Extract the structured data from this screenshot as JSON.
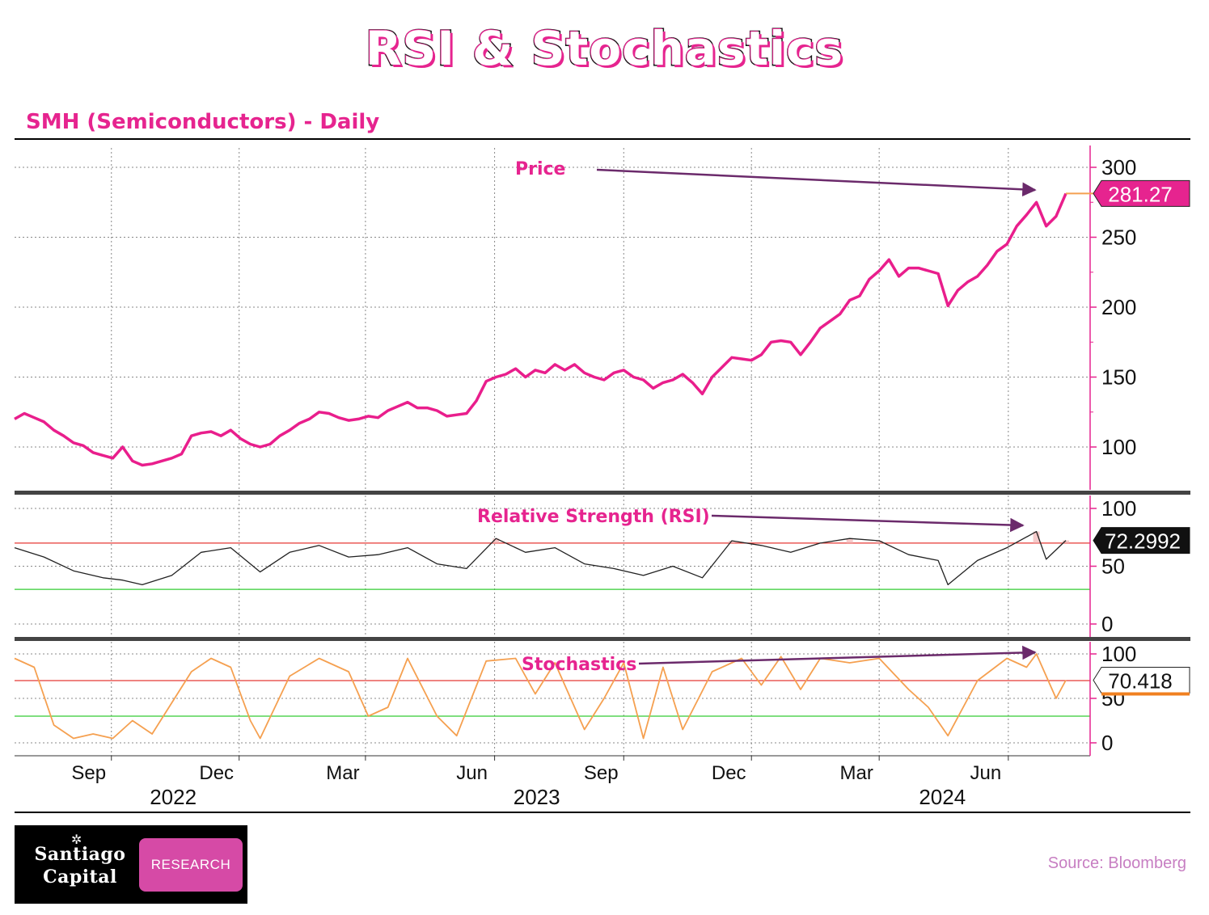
{
  "title": "RSI & Stochastics",
  "subtitle": "SMH (Semiconductors)  - Daily",
  "source": "Source: Bloomberg",
  "logo": {
    "name_line1": "Santiago",
    "name_line2": "Capital",
    "tag": "RESEARCH"
  },
  "colors": {
    "accent": "#e6248f",
    "price_line": "#e91e8c",
    "rsi_line": "#222222",
    "stoch_line": "#f5a050",
    "overbought_line": "#e53935",
    "oversold_line": "#33cc33",
    "annotation_arrow": "#6b2a6b"
  },
  "chart_data": [
    {
      "type": "line",
      "panel": "price",
      "ylim": [
        70,
        310
      ],
      "y_ticks": [
        100,
        150,
        200,
        250,
        300
      ],
      "last_value_label": "281.27",
      "annotation": "Price",
      "series": [
        {
          "points": [
            [
              "2022-06-24",
              120
            ],
            [
              "2022-07-01",
              124
            ],
            [
              "2022-07-08",
              121
            ],
            [
              "2022-07-15",
              118
            ],
            [
              "2022-07-22",
              112
            ],
            [
              "2022-07-29",
              108
            ],
            [
              "2022-08-05",
              103
            ],
            [
              "2022-08-12",
              101
            ],
            [
              "2022-08-19",
              96
            ],
            [
              "2022-08-26",
              94
            ],
            [
              "2022-09-02",
              92
            ],
            [
              "2022-09-09",
              100
            ],
            [
              "2022-09-16",
              90
            ],
            [
              "2022-09-23",
              87
            ],
            [
              "2022-09-30",
              88
            ],
            [
              "2022-10-07",
              90
            ],
            [
              "2022-10-14",
              92
            ],
            [
              "2022-10-21",
              95
            ],
            [
              "2022-10-28",
              108
            ],
            [
              "2022-11-04",
              110
            ],
            [
              "2022-11-11",
              111
            ],
            [
              "2022-11-18",
              108
            ],
            [
              "2022-11-25",
              112
            ],
            [
              "2022-12-02",
              106
            ],
            [
              "2022-12-09",
              102
            ],
            [
              "2022-12-16",
              100
            ],
            [
              "2022-12-23",
              102
            ],
            [
              "2022-12-30",
              108
            ],
            [
              "2023-01-06",
              112
            ],
            [
              "2023-01-13",
              117
            ],
            [
              "2023-01-20",
              120
            ],
            [
              "2023-01-27",
              125
            ],
            [
              "2023-02-03",
              124
            ],
            [
              "2023-02-10",
              121
            ],
            [
              "2023-02-17",
              119
            ],
            [
              "2023-02-24",
              120
            ],
            [
              "2023-03-03",
              122
            ],
            [
              "2023-03-10",
              121
            ],
            [
              "2023-03-17",
              126
            ],
            [
              "2023-03-24",
              129
            ],
            [
              "2023-03-31",
              132
            ],
            [
              "2023-04-07",
              128
            ],
            [
              "2023-04-14",
              128
            ],
            [
              "2023-04-21",
              126
            ],
            [
              "2023-04-28",
              122
            ],
            [
              "2023-05-05",
              123
            ],
            [
              "2023-05-12",
              124
            ],
            [
              "2023-05-19",
              133
            ],
            [
              "2023-05-26",
              147
            ],
            [
              "2023-06-02",
              150
            ],
            [
              "2023-06-09",
              152
            ],
            [
              "2023-06-16",
              156
            ],
            [
              "2023-06-23",
              150
            ],
            [
              "2023-06-30",
              155
            ],
            [
              "2023-07-07",
              153
            ],
            [
              "2023-07-14",
              159
            ],
            [
              "2023-07-21",
              155
            ],
            [
              "2023-07-28",
              159
            ],
            [
              "2023-08-04",
              153
            ],
            [
              "2023-08-11",
              150
            ],
            [
              "2023-08-18",
              148
            ],
            [
              "2023-08-25",
              153
            ],
            [
              "2023-09-01",
              155
            ],
            [
              "2023-09-08",
              150
            ],
            [
              "2023-09-15",
              148
            ],
            [
              "2023-09-22",
              142
            ],
            [
              "2023-09-29",
              146
            ],
            [
              "2023-10-06",
              148
            ],
            [
              "2023-10-13",
              152
            ],
            [
              "2023-10-20",
              146
            ],
            [
              "2023-10-27",
              138
            ],
            [
              "2023-11-03",
              150
            ],
            [
              "2023-11-10",
              157
            ],
            [
              "2023-11-17",
              164
            ],
            [
              "2023-11-24",
              163
            ],
            [
              "2023-12-01",
              162
            ],
            [
              "2023-12-08",
              166
            ],
            [
              "2023-12-15",
              175
            ],
            [
              "2023-12-22",
              176
            ],
            [
              "2023-12-29",
              175
            ],
            [
              "2024-01-05",
              166
            ],
            [
              "2024-01-12",
              175
            ],
            [
              "2024-01-19",
              185
            ],
            [
              "2024-01-26",
              190
            ],
            [
              "2024-02-02",
              195
            ],
            [
              "2024-02-09",
              205
            ],
            [
              "2024-02-16",
              208
            ],
            [
              "2024-02-23",
              220
            ],
            [
              "2024-03-01",
              226
            ],
            [
              "2024-03-08",
              234
            ],
            [
              "2024-03-15",
              222
            ],
            [
              "2024-03-22",
              228
            ],
            [
              "2024-03-29",
              228
            ],
            [
              "2024-04-05",
              226
            ],
            [
              "2024-04-12",
              224
            ],
            [
              "2024-04-19",
              201
            ],
            [
              "2024-04-26",
              212
            ],
            [
              "2024-05-03",
              218
            ],
            [
              "2024-05-10",
              222
            ],
            [
              "2024-05-17",
              230
            ],
            [
              "2024-05-24",
              240
            ],
            [
              "2024-05-31",
              245
            ],
            [
              "2024-06-07",
              258
            ],
            [
              "2024-06-14",
              266
            ],
            [
              "2024-06-21",
              275
            ],
            [
              "2024-06-28",
              258
            ],
            [
              "2024-07-05",
              265
            ],
            [
              "2024-07-12",
              281.27
            ]
          ]
        }
      ]
    },
    {
      "type": "line",
      "panel": "rsi",
      "ylim": [
        0,
        100
      ],
      "y_ticks": [
        0,
        50,
        100
      ],
      "reference_lines": [
        70,
        30
      ],
      "last_value_label": "72.2992",
      "annotation": "Relative Strength (RSI)",
      "series": [
        {
          "points": [
            [
              "2022-06-24",
              66
            ],
            [
              "2022-07-15",
              58
            ],
            [
              "2022-08-05",
              46
            ],
            [
              "2022-08-26",
              40
            ],
            [
              "2022-09-09",
              38
            ],
            [
              "2022-09-23",
              34
            ],
            [
              "2022-10-14",
              42
            ],
            [
              "2022-11-04",
              62
            ],
            [
              "2022-11-25",
              66
            ],
            [
              "2022-12-16",
              45
            ],
            [
              "2023-01-06",
              62
            ],
            [
              "2023-01-27",
              68
            ],
            [
              "2023-02-17",
              58
            ],
            [
              "2023-03-10",
              60
            ],
            [
              "2023-03-31",
              66
            ],
            [
              "2023-04-21",
              52
            ],
            [
              "2023-05-12",
              48
            ],
            [
              "2023-06-02",
              74
            ],
            [
              "2023-06-23",
              62
            ],
            [
              "2023-07-14",
              66
            ],
            [
              "2023-08-04",
              52
            ],
            [
              "2023-08-25",
              48
            ],
            [
              "2023-09-15",
              42
            ],
            [
              "2023-10-06",
              50
            ],
            [
              "2023-10-27",
              40
            ],
            [
              "2023-11-17",
              72
            ],
            [
              "2023-12-08",
              68
            ],
            [
              "2023-12-29",
              62
            ],
            [
              "2024-01-19",
              70
            ],
            [
              "2024-02-09",
              74
            ],
            [
              "2024-03-01",
              72
            ],
            [
              "2024-03-22",
              60
            ],
            [
              "2024-04-12",
              55
            ],
            [
              "2024-04-19",
              34
            ],
            [
              "2024-05-10",
              55
            ],
            [
              "2024-05-31",
              66
            ],
            [
              "2024-06-21",
              80
            ],
            [
              "2024-06-28",
              56
            ],
            [
              "2024-07-12",
              72.2992
            ]
          ]
        }
      ]
    },
    {
      "type": "line",
      "panel": "stochastics",
      "ylim": [
        0,
        100
      ],
      "y_ticks": [
        0,
        50,
        100
      ],
      "reference_lines": [
        70,
        30
      ],
      "last_value_label": "70.418",
      "annotation": "Stochastics",
      "series": [
        {
          "points": [
            [
              "2022-06-24",
              95
            ],
            [
              "2022-07-08",
              85
            ],
            [
              "2022-07-22",
              20
            ],
            [
              "2022-08-05",
              5
            ],
            [
              "2022-08-19",
              10
            ],
            [
              "2022-09-02",
              5
            ],
            [
              "2022-09-16",
              25
            ],
            [
              "2022-09-30",
              10
            ],
            [
              "2022-10-14",
              45
            ],
            [
              "2022-10-28",
              80
            ],
            [
              "2022-11-11",
              95
            ],
            [
              "2022-11-25",
              85
            ],
            [
              "2022-12-09",
              25
            ],
            [
              "2022-12-16",
              5
            ],
            [
              "2023-01-06",
              75
            ],
            [
              "2023-01-27",
              95
            ],
            [
              "2023-02-17",
              80
            ],
            [
              "2023-03-03",
              30
            ],
            [
              "2023-03-17",
              40
            ],
            [
              "2023-03-31",
              95
            ],
            [
              "2023-04-21",
              30
            ],
            [
              "2023-05-05",
              8
            ],
            [
              "2023-05-26",
              92
            ],
            [
              "2023-06-16",
              95
            ],
            [
              "2023-06-30",
              55
            ],
            [
              "2023-07-14",
              90
            ],
            [
              "2023-08-04",
              15
            ],
            [
              "2023-08-18",
              50
            ],
            [
              "2023-09-01",
              90
            ],
            [
              "2023-09-15",
              5
            ],
            [
              "2023-09-29",
              85
            ],
            [
              "2023-10-13",
              15
            ],
            [
              "2023-11-03",
              80
            ],
            [
              "2023-11-24",
              95
            ],
            [
              "2023-12-08",
              65
            ],
            [
              "2023-12-22",
              97
            ],
            [
              "2024-01-05",
              60
            ],
            [
              "2024-01-19",
              95
            ],
            [
              "2024-02-09",
              90
            ],
            [
              "2024-03-01",
              95
            ],
            [
              "2024-03-22",
              60
            ],
            [
              "2024-04-05",
              40
            ],
            [
              "2024-04-19",
              8
            ],
            [
              "2024-05-10",
              70
            ],
            [
              "2024-05-31",
              95
            ],
            [
              "2024-06-14",
              85
            ],
            [
              "2024-06-21",
              100
            ],
            [
              "2024-07-05",
              50
            ],
            [
              "2024-07-12",
              70.418
            ]
          ]
        }
      ]
    }
  ],
  "x_axis": {
    "month_ticks": [
      {
        "label": "Sep",
        "date": "2022-09-01"
      },
      {
        "label": "Dec",
        "date": "2022-12-01"
      },
      {
        "label": "Mar",
        "date": "2023-03-01"
      },
      {
        "label": "Jun",
        "date": "2023-06-01"
      },
      {
        "label": "Sep",
        "date": "2023-09-01"
      },
      {
        "label": "Dec",
        "date": "2023-12-01"
      },
      {
        "label": "Mar",
        "date": "2024-03-01"
      },
      {
        "label": "Jun",
        "date": "2024-06-01"
      }
    ],
    "year_labels": [
      {
        "label": "2022",
        "date": "2022-10-15"
      },
      {
        "label": "2023",
        "date": "2023-07-01"
      },
      {
        "label": "2024",
        "date": "2024-04-15"
      }
    ]
  }
}
